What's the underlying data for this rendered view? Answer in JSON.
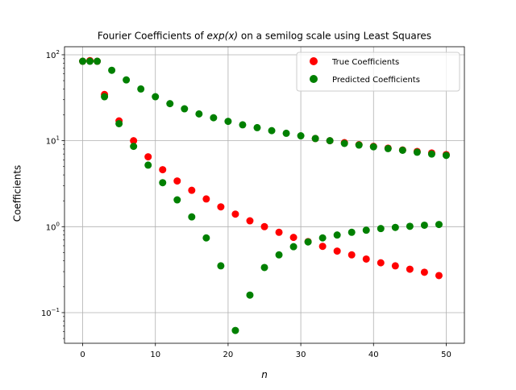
{
  "chart_data": {
    "type": "scatter",
    "title_prefix": "Fourier Coefficients of ",
    "title_math": "exp(x)",
    "title_suffix": " on a semilog scale using Least Squares",
    "xlabel": "n",
    "ylabel": "Coefficients",
    "y_scale": "log",
    "xlim": [
      -2.5,
      52.5
    ],
    "ylim": [
      0.044,
      124
    ],
    "x_ticks": [
      0,
      10,
      20,
      30,
      40,
      50
    ],
    "x_tick_labels": [
      "0",
      "10",
      "20",
      "30",
      "40",
      "50"
    ],
    "y_ticks": [
      0.1,
      1,
      10,
      100
    ],
    "y_tick_labels": [
      {
        "base": "10",
        "exp": "−1"
      },
      {
        "base": "10",
        "exp": "0"
      },
      {
        "base": "10",
        "exp": "1"
      },
      {
        "base": "10",
        "exp": "2"
      }
    ],
    "grid": true,
    "legend_position": "top-right",
    "series": [
      {
        "name": "True Coefficients",
        "color": "#ff0000",
        "points": [
          [
            0,
            84.0
          ],
          [
            1,
            85.5
          ],
          [
            2,
            84.0
          ],
          [
            3,
            34.5
          ],
          [
            5,
            17.0
          ],
          [
            7,
            10.0
          ],
          [
            9,
            6.5
          ],
          [
            11,
            4.6
          ],
          [
            13,
            3.4
          ],
          [
            15,
            2.65
          ],
          [
            17,
            2.1
          ],
          [
            19,
            1.7
          ],
          [
            21,
            1.4
          ],
          [
            23,
            1.17
          ],
          [
            25,
            1.0
          ],
          [
            27,
            0.86
          ],
          [
            29,
            0.75
          ],
          [
            31,
            0.67
          ],
          [
            33,
            0.59
          ],
          [
            35,
            0.52
          ],
          [
            37,
            0.47
          ],
          [
            39,
            0.42
          ],
          [
            41,
            0.38
          ],
          [
            43,
            0.35
          ],
          [
            45,
            0.32
          ],
          [
            47,
            0.295
          ],
          [
            49,
            0.27
          ],
          [
            32,
            10.6
          ],
          [
            34,
            10.0
          ],
          [
            36,
            9.5
          ],
          [
            38,
            9.0
          ],
          [
            40,
            8.6
          ],
          [
            42,
            8.2
          ],
          [
            44,
            7.8
          ],
          [
            46,
            7.5
          ],
          [
            48,
            7.2
          ],
          [
            50,
            6.9
          ]
        ]
      },
      {
        "name": "Predicted Coefficients",
        "color": "#008000",
        "points": [
          [
            0,
            84.0
          ],
          [
            1,
            84.0
          ],
          [
            2,
            84.0
          ],
          [
            3,
            32.5
          ],
          [
            4,
            66.0
          ],
          [
            5,
            15.8
          ],
          [
            6,
            51.0
          ],
          [
            7,
            8.6
          ],
          [
            8,
            40.0
          ],
          [
            9,
            5.2
          ],
          [
            10,
            32.5
          ],
          [
            11,
            3.25
          ],
          [
            12,
            27.0
          ],
          [
            13,
            2.05
          ],
          [
            14,
            23.5
          ],
          [
            15,
            1.3
          ],
          [
            16,
            20.5
          ],
          [
            17,
            0.74
          ],
          [
            18,
            18.5
          ],
          [
            19,
            0.35
          ],
          [
            20,
            16.8
          ],
          [
            21,
            0.062
          ],
          [
            22,
            15.3
          ],
          [
            23,
            0.16
          ],
          [
            24,
            14.2
          ],
          [
            25,
            0.335
          ],
          [
            26,
            13.1
          ],
          [
            27,
            0.47
          ],
          [
            28,
            12.2
          ],
          [
            29,
            0.585
          ],
          [
            30,
            11.4
          ],
          [
            31,
            0.665
          ],
          [
            32,
            10.6
          ],
          [
            33,
            0.74
          ],
          [
            34,
            10.0
          ],
          [
            35,
            0.8
          ],
          [
            36,
            9.3
          ],
          [
            37,
            0.86
          ],
          [
            38,
            8.9
          ],
          [
            39,
            0.91
          ],
          [
            40,
            8.5
          ],
          [
            41,
            0.95
          ],
          [
            42,
            8.1
          ],
          [
            43,
            0.98
          ],
          [
            44,
            7.75
          ],
          [
            45,
            1.01
          ],
          [
            46,
            7.35
          ],
          [
            47,
            1.04
          ],
          [
            48,
            7.0
          ],
          [
            49,
            1.06
          ],
          [
            50,
            6.75
          ]
        ]
      }
    ]
  }
}
